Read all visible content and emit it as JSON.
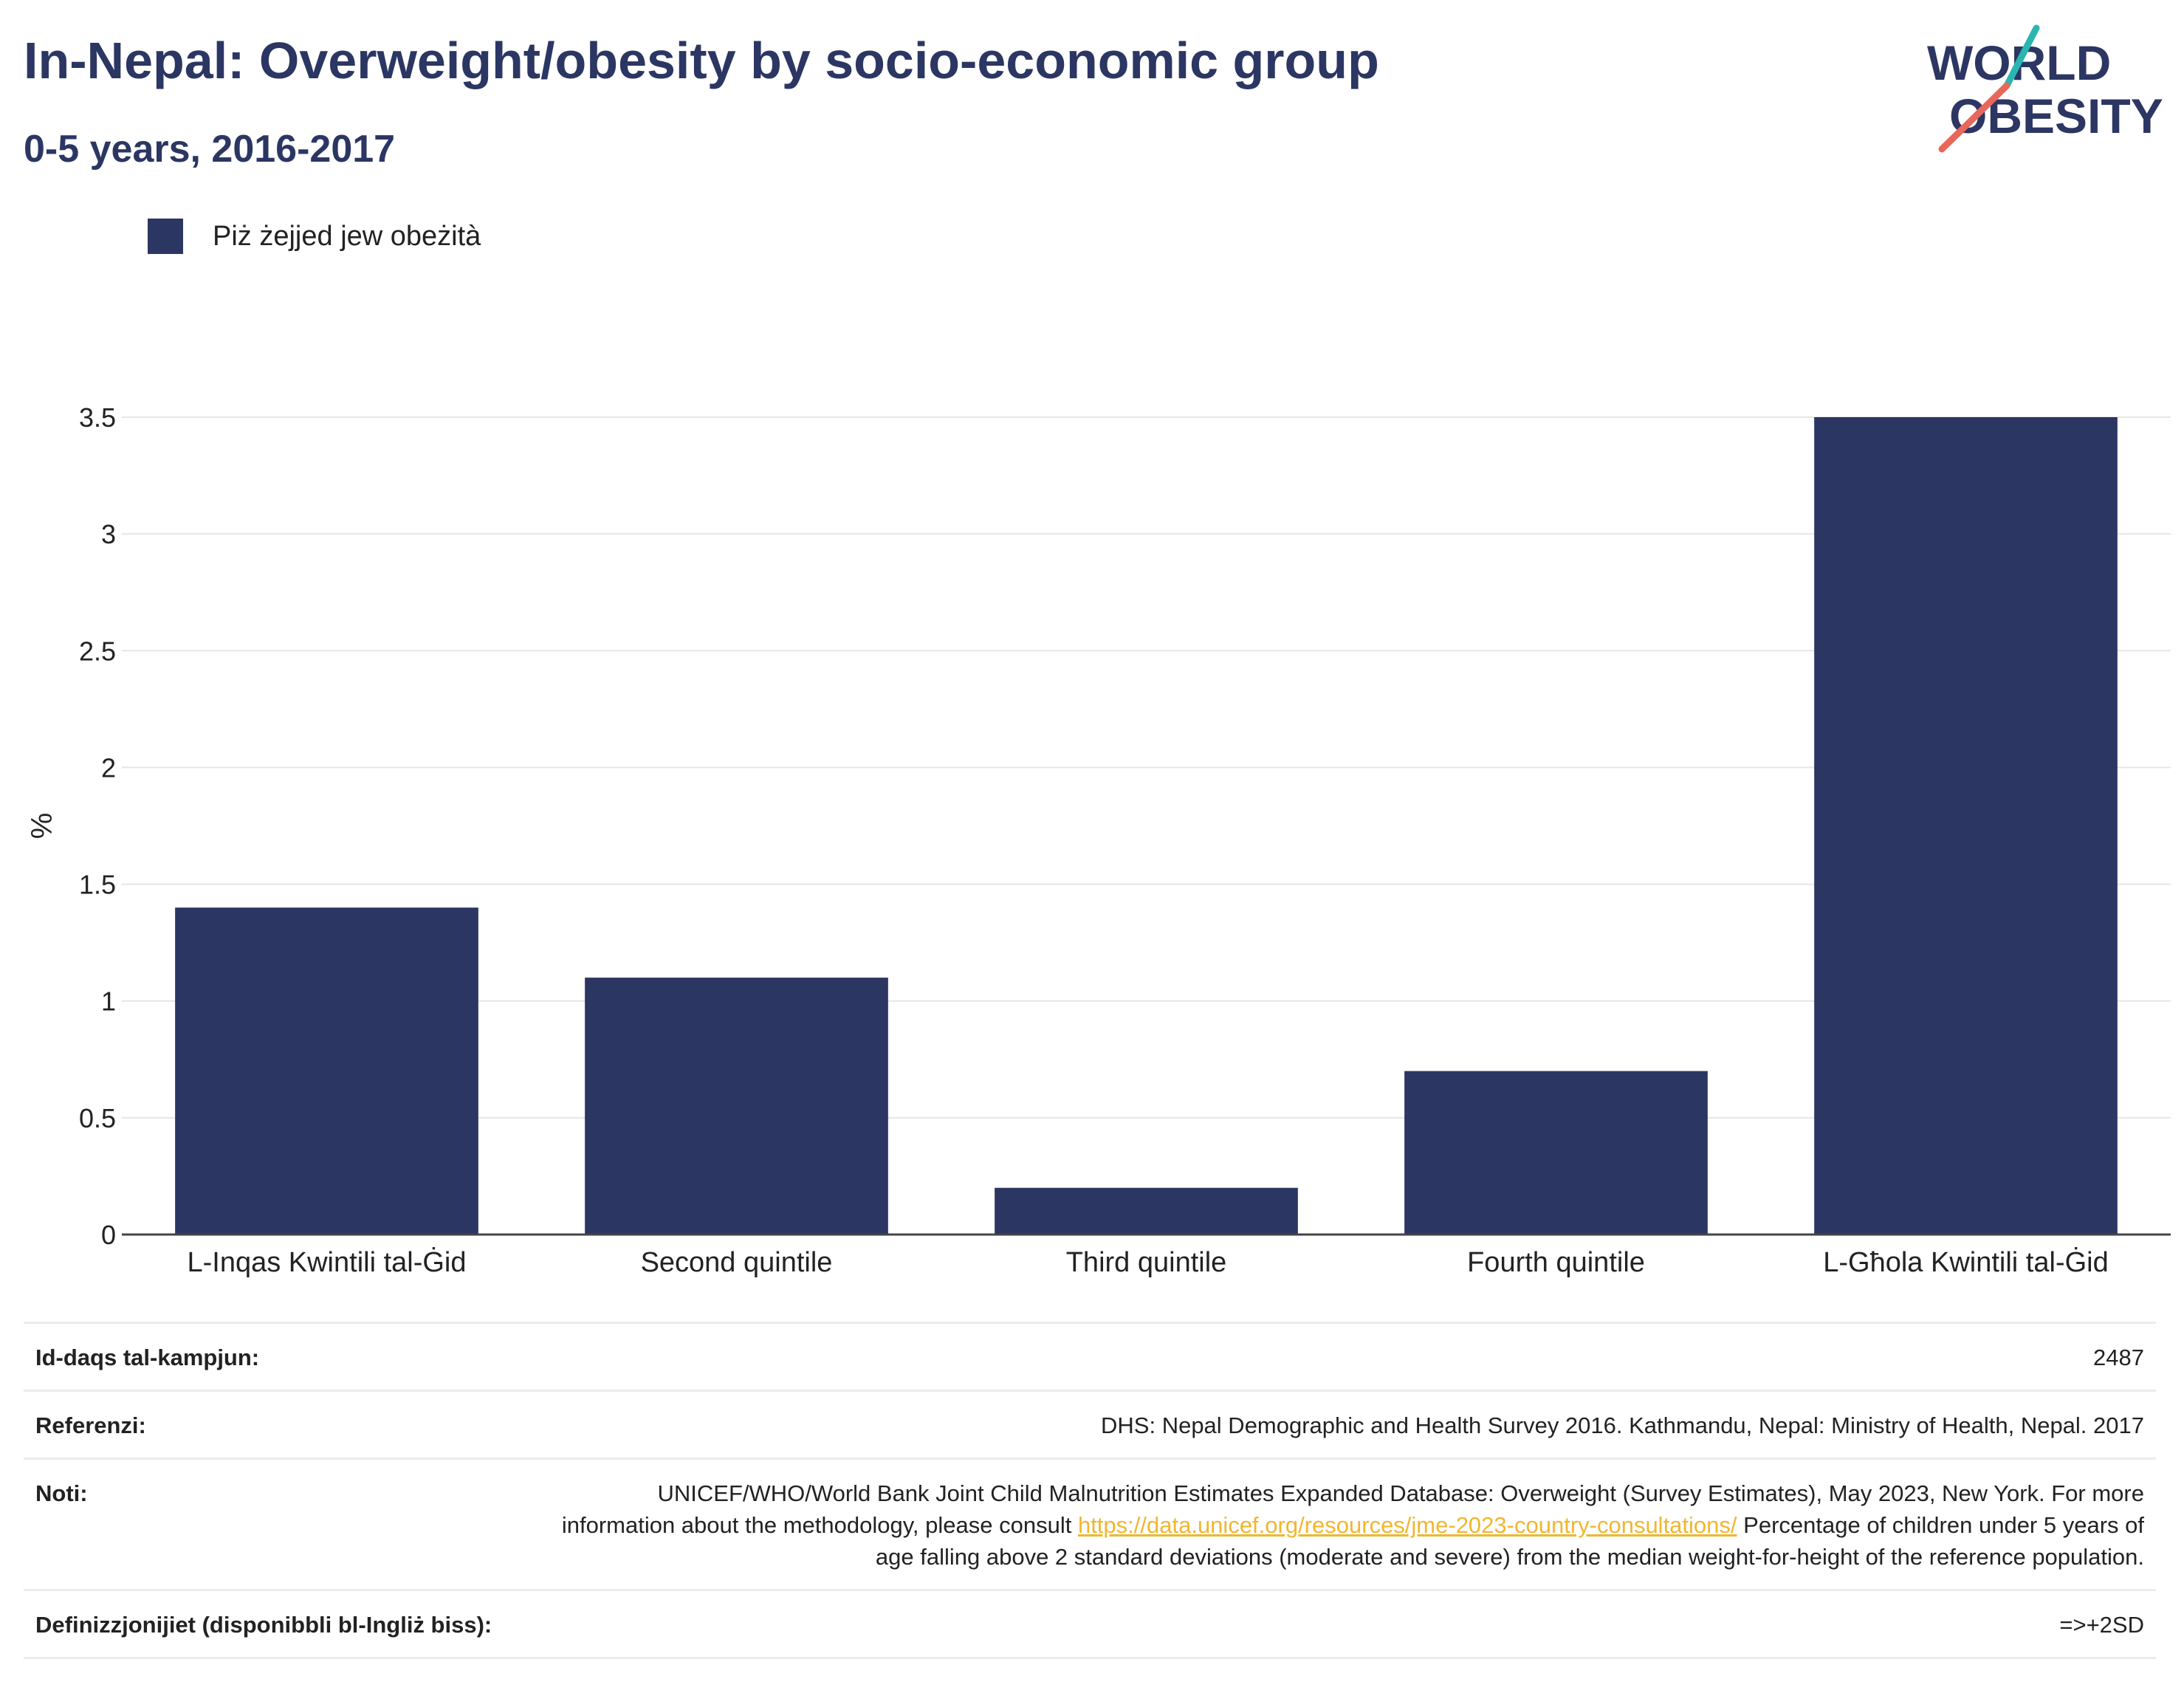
{
  "header": {
    "title": "In-Nepal: Overweight/obesity by socio-economic group",
    "subtitle": "0-5 years, 2016-2017"
  },
  "logo": {
    "line1": "WORLD",
    "line2": "OBESITY"
  },
  "colors": {
    "bar": "#2b3663",
    "title": "#2b3663",
    "logo_teal": "#2bb5b0",
    "logo_coral": "#e8675a",
    "link": "#f2b62e",
    "grid": "#e6e6e6"
  },
  "chart_data": {
    "type": "bar",
    "categories": [
      "L-Inqas Kwintili tal-Ġid",
      "Second quintile",
      "Third quintile",
      "Fourth quintile",
      "L-Għola Kwintili tal-Ġid"
    ],
    "series": [
      {
        "name": "Piż żejjed jew obeżità",
        "values": [
          1.4,
          1.1,
          0.2,
          0.7,
          3.5
        ]
      }
    ],
    "ylabel": "%",
    "ylim": [
      0,
      3.5
    ],
    "yticks": [
      0,
      0.5,
      1,
      1.5,
      2,
      2.5,
      3,
      3.5
    ],
    "ytick_labels": [
      "0",
      "0.5",
      "1",
      "1.5",
      "2",
      "2.5",
      "3",
      "3.5"
    ],
    "grid": true,
    "legend_position": "top-left"
  },
  "info": {
    "sample_size_label": "Id-daqs tal-kampjun:",
    "sample_size_value": "2487",
    "references_label": "Referenzi:",
    "references_value": "DHS: Nepal Demographic and Health Survey 2016. Kathmandu, Nepal: Ministry of Health, Nepal. 2017",
    "notes_label": "Noti:",
    "notes_text_before": "UNICEF/WHO/World Bank Joint Child Malnutrition Estimates Expanded Database: Overweight (Survey Estimates), May 2023, New York. For more information about the methodology, please consult",
    "notes_link": "https://data.unicef.org/resources/jme-2023-country-consultations/",
    "notes_text_after": "Percentage of children under 5 years of age falling above 2 standard deviations (moderate and severe) from the median weight-for-height of the reference population.",
    "definitions_label": "Definizzjonijiet (disponibbli bl-Ingliż biss):",
    "definitions_value": "=>+2SD"
  }
}
